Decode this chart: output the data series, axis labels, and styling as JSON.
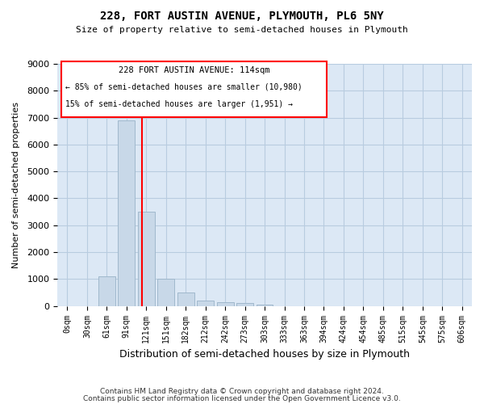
{
  "title": "228, FORT AUSTIN AVENUE, PLYMOUTH, PL6 5NY",
  "subtitle": "Size of property relative to semi-detached houses in Plymouth",
  "xlabel": "Distribution of semi-detached houses by size in Plymouth",
  "ylabel": "Number of semi-detached properties",
  "bar_color": "#c8d8e8",
  "bar_edgecolor": "#a0b8cc",
  "background_color": "#dce8f5",
  "grid_color": "#b8cce0",
  "annotation_title": "228 FORT AUSTIN AVENUE: 114sqm",
  "annotation_line1": "← 85% of semi-detached houses are smaller (10,980)",
  "annotation_line2": "15% of semi-detached houses are larger (1,951) →",
  "footer1": "Contains HM Land Registry data © Crown copyright and database right 2024.",
  "footer2": "Contains public sector information licensed under the Open Government Licence v3.0.",
  "categories": [
    "0sqm",
    "30sqm",
    "61sqm",
    "91sqm",
    "121sqm",
    "151sqm",
    "182sqm",
    "212sqm",
    "242sqm",
    "273sqm",
    "303sqm",
    "333sqm",
    "363sqm",
    "394sqm",
    "424sqm",
    "454sqm",
    "485sqm",
    "515sqm",
    "545sqm",
    "575sqm",
    "606sqm"
  ],
  "values": [
    0,
    0,
    1100,
    6900,
    3500,
    1000,
    500,
    200,
    150,
    100,
    50,
    0,
    0,
    0,
    0,
    0,
    0,
    0,
    0,
    0,
    0
  ],
  "ylim": [
    0,
    9000
  ],
  "yticks": [
    0,
    1000,
    2000,
    3000,
    4000,
    5000,
    6000,
    7000,
    8000,
    9000
  ],
  "redline_idx": 4,
  "fig_width": 6.0,
  "fig_height": 5.0,
  "dpi": 100
}
